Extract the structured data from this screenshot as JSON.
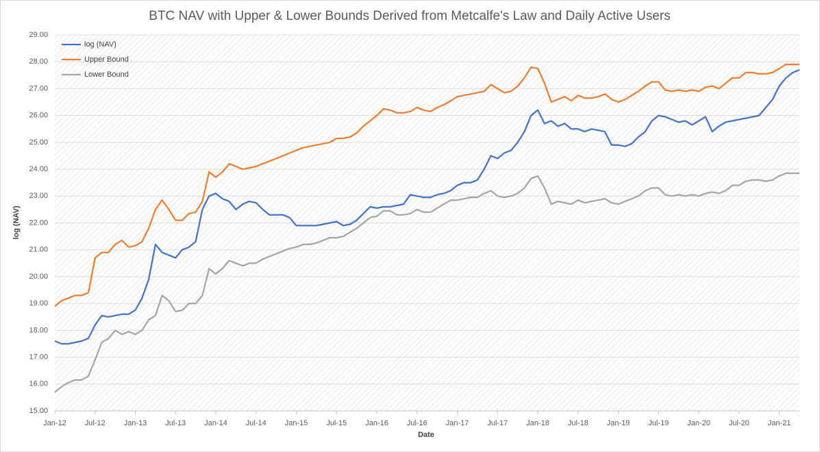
{
  "chart_data": {
    "type": "line",
    "title": "BTC NAV with Upper & Lower Bounds Derived from Metcalfe's Law and Daily Active Users",
    "x_label": "Date",
    "y_label": "log (NAV)",
    "grid": true,
    "legend": "top-left",
    "xlim": [
      "2012-01",
      "2021-04"
    ],
    "ylim": [
      15,
      29
    ],
    "yticks": [
      {
        "value": 15,
        "label": "15.00"
      },
      {
        "value": 16,
        "label": "16.00"
      },
      {
        "value": 17,
        "label": "17.00"
      },
      {
        "value": 18,
        "label": "18.00"
      },
      {
        "value": 19,
        "label": "19.00"
      },
      {
        "value": 20,
        "label": "20.00"
      },
      {
        "value": 21,
        "label": "21.00"
      },
      {
        "value": 22,
        "label": "22.00"
      },
      {
        "value": 23,
        "label": "23.00"
      },
      {
        "value": 24,
        "label": "24.00"
      },
      {
        "value": 25,
        "label": "25.00"
      },
      {
        "value": 26,
        "label": "26.00"
      },
      {
        "value": 27,
        "label": "27.00"
      },
      {
        "value": 28,
        "label": "28.00"
      },
      {
        "value": 29,
        "label": "29.00"
      }
    ],
    "xticks": [
      {
        "value": "2012-01",
        "label": "Jan-12"
      },
      {
        "value": "2012-07",
        "label": "Jul-12"
      },
      {
        "value": "2013-01",
        "label": "Jan-13"
      },
      {
        "value": "2013-07",
        "label": "Jul-13"
      },
      {
        "value": "2014-01",
        "label": "Jan-14"
      },
      {
        "value": "2014-07",
        "label": "Jul-14"
      },
      {
        "value": "2015-01",
        "label": "Jan-15"
      },
      {
        "value": "2015-07",
        "label": "Jul-15"
      },
      {
        "value": "2016-01",
        "label": "Jan-16"
      },
      {
        "value": "2016-07",
        "label": "Jul-16"
      },
      {
        "value": "2017-01",
        "label": "Jan-17"
      },
      {
        "value": "2017-07",
        "label": "Jul-17"
      },
      {
        "value": "2018-01",
        "label": "Jan-18"
      },
      {
        "value": "2018-07",
        "label": "Jul-18"
      },
      {
        "value": "2019-01",
        "label": "Jan-19"
      },
      {
        "value": "2019-07",
        "label": "Jul-19"
      },
      {
        "value": "2020-01",
        "label": "Jan-20"
      },
      {
        "value": "2020-07",
        "label": "Jul-20"
      },
      {
        "value": "2021-01",
        "label": "Jan-21"
      }
    ],
    "x": [
      "2012-01",
      "2012-02",
      "2012-03",
      "2012-04",
      "2012-05",
      "2012-06",
      "2012-07",
      "2012-08",
      "2012-09",
      "2012-10",
      "2012-11",
      "2012-12",
      "2013-01",
      "2013-02",
      "2013-03",
      "2013-04",
      "2013-05",
      "2013-06",
      "2013-07",
      "2013-08",
      "2013-09",
      "2013-10",
      "2013-11",
      "2013-12",
      "2014-01",
      "2014-02",
      "2014-03",
      "2014-04",
      "2014-05",
      "2014-06",
      "2014-07",
      "2014-08",
      "2014-09",
      "2014-10",
      "2014-11",
      "2014-12",
      "2015-01",
      "2015-02",
      "2015-03",
      "2015-04",
      "2015-05",
      "2015-06",
      "2015-07",
      "2015-08",
      "2015-09",
      "2015-10",
      "2015-11",
      "2015-12",
      "2016-01",
      "2016-02",
      "2016-03",
      "2016-04",
      "2016-05",
      "2016-06",
      "2016-07",
      "2016-08",
      "2016-09",
      "2016-10",
      "2016-11",
      "2016-12",
      "2017-01",
      "2017-02",
      "2017-03",
      "2017-04",
      "2017-05",
      "2017-06",
      "2017-07",
      "2017-08",
      "2017-09",
      "2017-10",
      "2017-11",
      "2017-12",
      "2018-01",
      "2018-02",
      "2018-03",
      "2018-04",
      "2018-05",
      "2018-06",
      "2018-07",
      "2018-08",
      "2018-09",
      "2018-10",
      "2018-11",
      "2018-12",
      "2019-01",
      "2019-02",
      "2019-03",
      "2019-04",
      "2019-05",
      "2019-06",
      "2019-07",
      "2019-08",
      "2019-09",
      "2019-10",
      "2019-11",
      "2019-12",
      "2020-01",
      "2020-02",
      "2020-03",
      "2020-04",
      "2020-05",
      "2020-06",
      "2020-07",
      "2020-08",
      "2020-09",
      "2020-10",
      "2020-11",
      "2020-12",
      "2021-01",
      "2021-02",
      "2021-03",
      "2021-04"
    ],
    "series": [
      {
        "name": "log (NAV)",
        "color": "#4472c4",
        "values": [
          17.6,
          17.5,
          17.5,
          17.55,
          17.6,
          17.7,
          18.2,
          18.55,
          18.5,
          18.55,
          18.6,
          18.6,
          18.75,
          19.2,
          19.9,
          21.2,
          20.9,
          20.8,
          20.7,
          21.0,
          21.1,
          21.3,
          22.5,
          23.0,
          23.1,
          22.9,
          22.8,
          22.5,
          22.7,
          22.8,
          22.75,
          22.5,
          22.3,
          22.3,
          22.3,
          22.2,
          21.9,
          21.9,
          21.9,
          21.9,
          21.95,
          22.0,
          22.05,
          21.9,
          21.95,
          22.1,
          22.35,
          22.6,
          22.55,
          22.6,
          22.6,
          22.65,
          22.7,
          23.05,
          23.0,
          22.95,
          22.95,
          23.05,
          23.1,
          23.2,
          23.4,
          23.5,
          23.5,
          23.6,
          24.0,
          24.5,
          24.4,
          24.6,
          24.7,
          25.0,
          25.4,
          26.0,
          26.2,
          25.7,
          25.8,
          25.6,
          25.7,
          25.5,
          25.5,
          25.4,
          25.5,
          25.45,
          25.4,
          24.9,
          24.9,
          24.85,
          24.95,
          25.2,
          25.4,
          25.8,
          26.0,
          25.95,
          25.85,
          25.75,
          25.8,
          25.65,
          25.8,
          25.95,
          25.4,
          25.6,
          25.75,
          25.8,
          25.85,
          25.9,
          25.95,
          26.0,
          26.3,
          26.6,
          27.1,
          27.4,
          27.6,
          27.7
        ]
      },
      {
        "name": "Upper Bound",
        "color": "#ed7d31",
        "values": [
          18.9,
          19.1,
          19.2,
          19.3,
          19.3,
          19.4,
          20.7,
          20.9,
          20.9,
          21.2,
          21.35,
          21.1,
          21.15,
          21.3,
          21.8,
          22.5,
          22.85,
          22.5,
          22.1,
          22.1,
          22.35,
          22.4,
          22.8,
          23.9,
          23.7,
          23.9,
          24.2,
          24.1,
          24.0,
          24.05,
          24.1,
          24.2,
          24.3,
          24.4,
          24.5,
          24.6,
          24.7,
          24.8,
          24.85,
          24.9,
          24.95,
          25.0,
          25.15,
          25.15,
          25.2,
          25.35,
          25.6,
          25.8,
          26.0,
          26.25,
          26.2,
          26.1,
          26.1,
          26.15,
          26.3,
          26.2,
          26.15,
          26.3,
          26.4,
          26.55,
          26.7,
          26.75,
          26.8,
          26.85,
          26.9,
          27.15,
          27.0,
          26.85,
          26.9,
          27.1,
          27.4,
          27.8,
          27.75,
          27.2,
          26.5,
          26.6,
          26.7,
          26.55,
          26.75,
          26.65,
          26.65,
          26.7,
          26.8,
          26.6,
          26.5,
          26.6,
          26.75,
          26.9,
          27.1,
          27.25,
          27.25,
          26.95,
          26.9,
          26.95,
          26.9,
          26.95,
          26.9,
          27.05,
          27.1,
          27.0,
          27.2,
          27.4,
          27.4,
          27.6,
          27.6,
          27.55,
          27.55,
          27.6,
          27.75,
          27.9,
          27.9,
          27.9
        ]
      },
      {
        "name": "Lower Bound",
        "color": "#a5a5a5",
        "values": [
          15.7,
          15.9,
          16.05,
          16.15,
          16.15,
          16.3,
          16.9,
          17.55,
          17.7,
          18.0,
          17.85,
          17.95,
          17.85,
          18.0,
          18.4,
          18.55,
          19.3,
          19.1,
          18.7,
          18.75,
          19.0,
          19.0,
          19.3,
          20.3,
          20.1,
          20.3,
          20.6,
          20.5,
          20.4,
          20.5,
          20.5,
          20.65,
          20.75,
          20.85,
          20.95,
          21.05,
          21.1,
          21.2,
          21.2,
          21.25,
          21.35,
          21.45,
          21.45,
          21.5,
          21.65,
          21.8,
          22.0,
          22.2,
          22.25,
          22.45,
          22.45,
          22.3,
          22.3,
          22.35,
          22.5,
          22.4,
          22.4,
          22.55,
          22.7,
          22.85,
          22.85,
          22.9,
          22.95,
          22.95,
          23.1,
          23.2,
          23.0,
          22.95,
          23.0,
          23.1,
          23.3,
          23.65,
          23.75,
          23.3,
          22.7,
          22.8,
          22.75,
          22.7,
          22.85,
          22.75,
          22.8,
          22.85,
          22.9,
          22.75,
          22.7,
          22.8,
          22.9,
          23.0,
          23.2,
          23.3,
          23.3,
          23.05,
          23.0,
          23.05,
          23.0,
          23.05,
          23.0,
          23.1,
          23.15,
          23.1,
          23.2,
          23.4,
          23.4,
          23.55,
          23.6,
          23.6,
          23.55,
          23.6,
          23.75,
          23.85,
          23.85,
          23.85
        ]
      }
    ]
  }
}
